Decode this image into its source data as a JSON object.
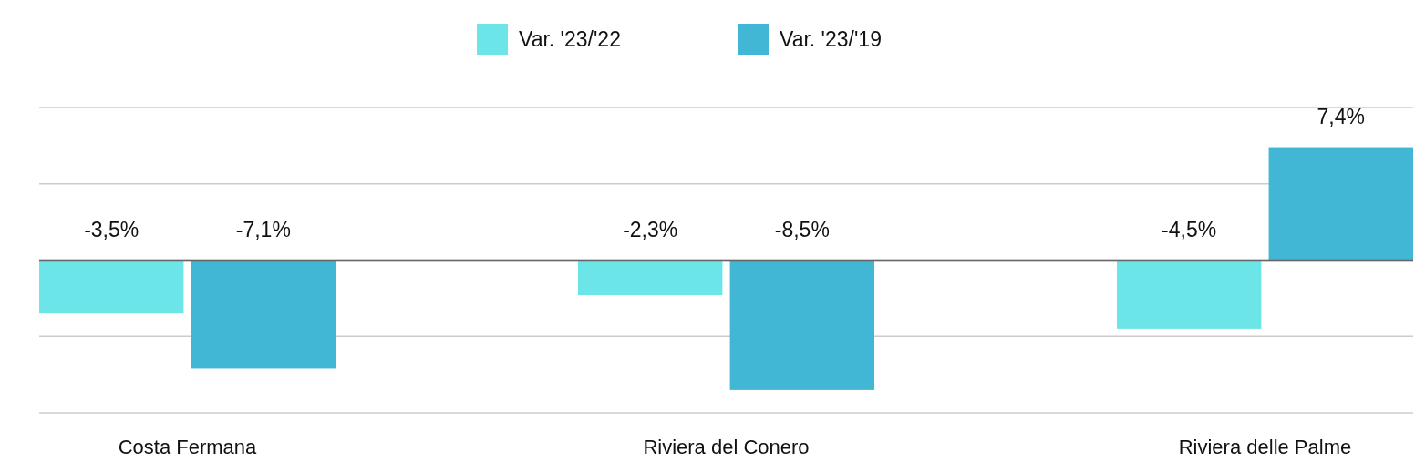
{
  "chart_data": {
    "type": "bar",
    "categories": [
      "Costa Fermana",
      "Riviera del Conero",
      "Riviera delle Palme"
    ],
    "series": [
      {
        "name": "Var. '23/'22",
        "color": "#6ce5e8",
        "values": [
          -3.5,
          -2.3,
          -4.5
        ],
        "value_labels": [
          "-3,5%",
          "-2,3%",
          "-4,5%"
        ]
      },
      {
        "name": "Var. '23/'19",
        "color": "#41b6d5",
        "values": [
          -7.1,
          -8.5,
          7.4
        ],
        "value_labels": [
          "-7,1%",
          "-8,5%",
          "7,4%"
        ]
      }
    ],
    "ylim": [
      -10,
      10
    ],
    "yticks": [
      {
        "value": -10,
        "label": null
      },
      {
        "value": -5,
        "label": null
      },
      {
        "value": 0,
        "label": null
      },
      {
        "value": 5,
        "label": null
      },
      {
        "value": 10,
        "label": null
      }
    ],
    "tick_labels": "x",
    "grid": "y",
    "legend": "top"
  }
}
